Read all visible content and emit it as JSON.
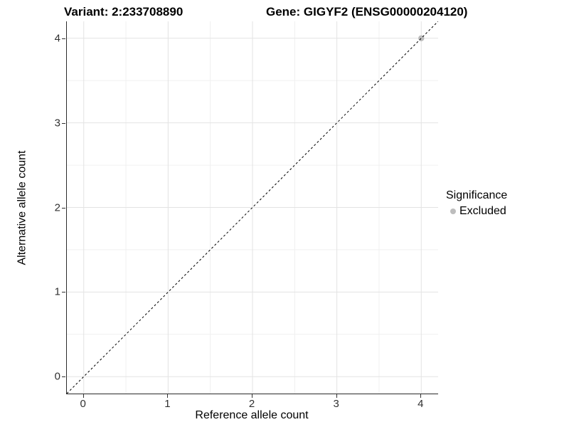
{
  "titles": {
    "variant": "Variant: 2:233708890",
    "gene": "Gene: GIGYF2 (ENSG00000204120)"
  },
  "legend": {
    "title": "Significance",
    "items": [
      {
        "label": "Excluded",
        "color": "#bdbdbd"
      }
    ]
  },
  "chart_data": {
    "type": "scatter",
    "title": "Variant: 2:233708890   Gene: GIGYF2 (ENSG00000204120)",
    "xlabel": "Reference allele count",
    "ylabel": "Alternative allele count",
    "xlim": [
      -0.2,
      4.2
    ],
    "ylim": [
      -0.2,
      4.2
    ],
    "xticks": [
      0,
      1,
      2,
      3,
      4
    ],
    "yticks": [
      0,
      1,
      2,
      3,
      4
    ],
    "minor_ticks": [
      0.5,
      1.5,
      2.5,
      3.5
    ],
    "grid": "major-and-minor",
    "legend_position": "right",
    "series": [
      {
        "name": "Excluded",
        "color": "#bdbdbd",
        "points": [
          {
            "x": 4,
            "y": 4
          }
        ]
      }
    ],
    "reference_line": {
      "slope": 1,
      "intercept": 0,
      "style": "dashed",
      "color": "#000000"
    }
  },
  "colors": {
    "grid_major": "#e3e3e3",
    "grid_minor": "#f0f0f0",
    "axis_line": "#2b2b2b",
    "tick": "#333333",
    "point": "#bdbdbd"
  }
}
